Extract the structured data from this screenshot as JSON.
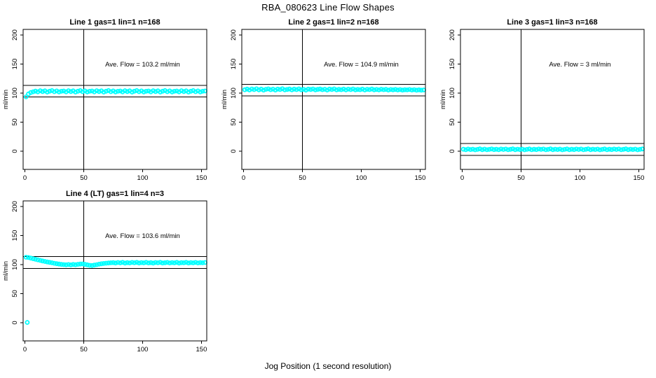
{
  "page": {
    "title": "RBA_080623  Line Flow Shapes",
    "xlabel": "Jog Position (1 second resolution)"
  },
  "colors": {
    "points": "#00ffff",
    "axis": "#000000",
    "background": "#ffffff"
  },
  "chart_data": [
    {
      "type": "scatter",
      "title": "Line 1 gas=1 lin=1 n=168",
      "annotation": "Ave. Flow =  103.2  ml/min",
      "annotation_xy": [
        100,
        146
      ],
      "ave_flow": 103.2,
      "n": 168,
      "ylabel": "ml/min",
      "vline_x": 50,
      "hlines": [
        113.2,
        93.2
      ],
      "xticks": [
        0,
        50,
        100,
        150
      ],
      "yticks": [
        0,
        50,
        100,
        150,
        200
      ],
      "xlim": [
        -1.5,
        154.5
      ],
      "ylim": [
        -31.3,
        209.6
      ],
      "grid": false,
      "points": [
        [
          1,
          93.5
        ],
        [
          3,
          98.5
        ],
        [
          5,
          101
        ],
        [
          7,
          102.3
        ],
        [
          9,
          103.4
        ],
        [
          11,
          102.2
        ],
        [
          13,
          104.1
        ],
        [
          15,
          102.7
        ],
        [
          17,
          103.9
        ],
        [
          19,
          101.8
        ],
        [
          21,
          103.2
        ],
        [
          23,
          104.3
        ],
        [
          25,
          102.4
        ],
        [
          27,
          103.7
        ],
        [
          29,
          102
        ],
        [
          31,
          103.1
        ],
        [
          33,
          103.6
        ],
        [
          35,
          102.2
        ],
        [
          37,
          104.1
        ],
        [
          39,
          102.7
        ],
        [
          41,
          103.9
        ],
        [
          43,
          101.8
        ],
        [
          45,
          103.2
        ],
        [
          47,
          104.3
        ],
        [
          49,
          102.4
        ],
        [
          51,
          103.7
        ],
        [
          53,
          102
        ],
        [
          55,
          103.1
        ],
        [
          57,
          103.6
        ],
        [
          59,
          102.2
        ],
        [
          61,
          104.1
        ],
        [
          63,
          102.7
        ],
        [
          65,
          103.9
        ],
        [
          67,
          101.8
        ],
        [
          69,
          103.2
        ],
        [
          71,
          104.3
        ],
        [
          73,
          102.4
        ],
        [
          75,
          103.7
        ],
        [
          77,
          102
        ],
        [
          79,
          103.1
        ],
        [
          81,
          103.6
        ],
        [
          83,
          102.2
        ],
        [
          85,
          104.1
        ],
        [
          87,
          102.7
        ],
        [
          89,
          103.9
        ],
        [
          91,
          101.8
        ],
        [
          93,
          103.2
        ],
        [
          95,
          104.3
        ],
        [
          97,
          102.4
        ],
        [
          99,
          103.7
        ],
        [
          101,
          102
        ],
        [
          103,
          103.1
        ],
        [
          105,
          103.6
        ],
        [
          107,
          102.2
        ],
        [
          109,
          104.1
        ],
        [
          111,
          102.7
        ],
        [
          113,
          103.9
        ],
        [
          115,
          101.8
        ],
        [
          117,
          103.2
        ],
        [
          119,
          104.3
        ],
        [
          121,
          102.4
        ],
        [
          123,
          103.7
        ],
        [
          125,
          102
        ],
        [
          127,
          103.1
        ],
        [
          129,
          103.6
        ],
        [
          131,
          102.2
        ],
        [
          133,
          104.1
        ],
        [
          135,
          102.7
        ],
        [
          137,
          103.9
        ],
        [
          139,
          101.8
        ],
        [
          141,
          103.2
        ],
        [
          143,
          104.3
        ],
        [
          145,
          102.4
        ],
        [
          147,
          103.7
        ],
        [
          149,
          102
        ],
        [
          151,
          103.1
        ],
        [
          153,
          103.6
        ]
      ]
    },
    {
      "type": "scatter",
      "title": "Line 2 gas=1 lin=2 n=168",
      "annotation": "Ave. Flow =  104.9  ml/min",
      "annotation_xy": [
        100,
        146
      ],
      "ave_flow": 104.9,
      "n": 168,
      "ylabel": "ml/min",
      "vline_x": 50,
      "hlines": [
        114.9,
        94.9
      ],
      "xticks": [
        0,
        50,
        100,
        150
      ],
      "yticks": [
        0,
        50,
        100,
        150,
        200
      ],
      "xlim": [
        -1.5,
        154.5
      ],
      "ylim": [
        -31.3,
        209.6
      ],
      "grid": false,
      "points": [
        [
          1,
          105.8
        ],
        [
          3,
          106.9
        ],
        [
          5,
          105.4
        ],
        [
          7,
          107.1
        ],
        [
          9,
          106
        ],
        [
          11,
          107.3
        ],
        [
          13,
          105.6
        ],
        [
          15,
          106.8
        ],
        [
          17,
          105.2
        ],
        [
          19,
          106.5
        ],
        [
          21,
          107.2
        ],
        [
          23,
          105.9
        ],
        [
          25,
          106.7
        ],
        [
          27,
          105.3
        ],
        [
          29,
          106.9
        ],
        [
          31,
          106.1
        ],
        [
          33,
          107.4
        ],
        [
          35,
          105.7
        ],
        [
          37,
          106.3
        ],
        [
          39,
          107
        ],
        [
          41,
          105.5
        ],
        [
          43,
          106.8
        ],
        [
          45,
          106
        ],
        [
          47,
          107.2
        ],
        [
          49,
          105.8
        ],
        [
          51,
          106.5
        ],
        [
          53,
          105.2
        ],
        [
          55,
          106.9
        ],
        [
          57,
          106.2
        ],
        [
          59,
          107.1
        ],
        [
          61,
          105.6
        ],
        [
          63,
          106.4
        ],
        [
          65,
          107
        ],
        [
          67,
          105.9
        ],
        [
          69,
          106.6
        ],
        [
          71,
          105.3
        ],
        [
          73,
          106.8
        ],
        [
          75,
          106.1
        ],
        [
          77,
          107.2
        ],
        [
          79,
          105.7
        ],
        [
          81,
          106.4
        ],
        [
          83,
          105.9
        ],
        [
          85,
          106.9
        ],
        [
          87,
          105.5
        ],
        [
          89,
          106.7
        ],
        [
          91,
          106
        ],
        [
          93,
          107.1
        ],
        [
          95,
          105.6
        ],
        [
          97,
          106.3
        ],
        [
          99,
          105.9
        ],
        [
          101,
          106.8
        ],
        [
          103,
          105.4
        ],
        [
          105,
          106.5
        ],
        [
          107,
          106
        ],
        [
          109,
          107
        ],
        [
          111,
          105.7
        ],
        [
          113,
          106.2
        ],
        [
          115,
          105.5
        ],
        [
          117,
          106.6
        ],
        [
          119,
          105.9
        ],
        [
          121,
          106.4
        ],
        [
          123,
          105.3
        ],
        [
          125,
          106.1
        ],
        [
          127,
          105.6
        ],
        [
          129,
          106.3
        ],
        [
          131,
          105.4
        ],
        [
          133,
          106
        ],
        [
          135,
          105.2
        ],
        [
          137,
          105.8
        ],
        [
          139,
          105.5
        ],
        [
          141,
          106.1
        ],
        [
          143,
          105.3
        ],
        [
          145,
          105.9
        ],
        [
          147,
          105.1
        ],
        [
          149,
          105.6
        ],
        [
          151,
          105
        ],
        [
          153,
          105.4
        ]
      ]
    },
    {
      "type": "scatter",
      "title": "Line 3 gas=1 lin=3 n=168",
      "annotation": "Ave. Flow =  3  ml/min",
      "annotation_xy": [
        100,
        146
      ],
      "ave_flow": 3,
      "n": 168,
      "ylabel": "ml/min",
      "vline_x": 50,
      "hlines": [
        13,
        -7
      ],
      "xticks": [
        0,
        50,
        100,
        150
      ],
      "yticks": [
        0,
        50,
        100,
        150,
        200
      ],
      "xlim": [
        -1.5,
        154.5
      ],
      "ylim": [
        -31.3,
        209.6
      ],
      "grid": false,
      "points": [
        [
          1,
          3.4
        ],
        [
          3,
          2.6
        ],
        [
          5,
          3.8
        ],
        [
          7,
          2.9
        ],
        [
          9,
          3.5
        ],
        [
          11,
          2.4
        ],
        [
          13,
          3.1
        ],
        [
          15,
          4
        ],
        [
          17,
          2.7
        ],
        [
          19,
          3.6
        ],
        [
          21,
          2.5
        ],
        [
          23,
          3.2
        ],
        [
          25,
          3.9
        ],
        [
          27,
          2.8
        ],
        [
          29,
          3.4
        ],
        [
          31,
          2.6
        ],
        [
          33,
          3.7
        ],
        [
          35,
          3
        ],
        [
          37,
          3.8
        ],
        [
          39,
          2.5
        ],
        [
          41,
          3.3
        ],
        [
          43,
          4
        ],
        [
          45,
          2.7
        ],
        [
          47,
          3.5
        ],
        [
          49,
          2.9
        ],
        [
          51,
          3.6
        ],
        [
          53,
          2.4
        ],
        [
          55,
          3.1
        ],
        [
          57,
          3.9
        ],
        [
          59,
          2.6
        ],
        [
          61,
          3.4
        ],
        [
          63,
          2.8
        ],
        [
          65,
          3.7
        ],
        [
          67,
          3.1
        ],
        [
          69,
          3.8
        ],
        [
          71,
          2.5
        ],
        [
          73,
          3.2
        ],
        [
          75,
          4
        ],
        [
          77,
          2.7
        ],
        [
          79,
          3.5
        ],
        [
          81,
          2.9
        ],
        [
          83,
          3.6
        ],
        [
          85,
          2.4
        ],
        [
          87,
          3.1
        ],
        [
          89,
          3.9
        ],
        [
          91,
          2.6
        ],
        [
          93,
          3.4
        ],
        [
          95,
          2.8
        ],
        [
          97,
          3.7
        ],
        [
          99,
          3
        ],
        [
          101,
          3.8
        ],
        [
          103,
          2.5
        ],
        [
          105,
          3.3
        ],
        [
          107,
          4
        ],
        [
          109,
          2.7
        ],
        [
          111,
          3.5
        ],
        [
          113,
          2.9
        ],
        [
          115,
          3.6
        ],
        [
          117,
          2.4
        ],
        [
          119,
          3.1
        ],
        [
          121,
          3.9
        ],
        [
          123,
          2.6
        ],
        [
          125,
          3.4
        ],
        [
          127,
          2.8
        ],
        [
          129,
          3.7
        ],
        [
          131,
          3
        ],
        [
          133,
          3.8
        ],
        [
          135,
          2.5
        ],
        [
          137,
          3.3
        ],
        [
          139,
          4
        ],
        [
          141,
          2.7
        ],
        [
          143,
          3.5
        ],
        [
          145,
          2.9
        ],
        [
          147,
          3.6
        ],
        [
          149,
          2.4
        ],
        [
          151,
          3.1
        ],
        [
          153,
          3.9
        ]
      ]
    },
    {
      "type": "scatter",
      "title": "Line 4 (LT) gas=1 lin=4 n=3",
      "annotation": "Ave. Flow =  103.6  ml/min",
      "annotation_xy": [
        100,
        146
      ],
      "ave_flow": 103.6,
      "n": 3,
      "ylabel": "ml/min",
      "vline_x": 50,
      "hlines": [
        113.6,
        93.6
      ],
      "xticks": [
        0,
        50,
        100,
        150
      ],
      "yticks": [
        0,
        50,
        100,
        150,
        200
      ],
      "xlim": [
        -1.5,
        154.5
      ],
      "ylim": [
        -31.3,
        209.6
      ],
      "grid": false,
      "points": [
        [
          2,
          0.5
        ],
        [
          1,
          112.6
        ],
        [
          3,
          112.1
        ],
        [
          5,
          111.2
        ],
        [
          7,
          110.1
        ],
        [
          9,
          109.2
        ],
        [
          11,
          108.2
        ],
        [
          13,
          107.2
        ],
        [
          15,
          106.2
        ],
        [
          17,
          105.4
        ],
        [
          19,
          104.6
        ],
        [
          21,
          103.9
        ],
        [
          23,
          103.1
        ],
        [
          25,
          102.3
        ],
        [
          27,
          101.6
        ],
        [
          29,
          100.9
        ],
        [
          31,
          100.4
        ],
        [
          33,
          100
        ],
        [
          35,
          99.6
        ],
        [
          37,
          100.1
        ],
        [
          39,
          99.5
        ],
        [
          41,
          100.2
        ],
        [
          43,
          99.8
        ],
        [
          45,
          100.5
        ],
        [
          47,
          100.9
        ],
        [
          49,
          101.2
        ],
        [
          51,
          100.4
        ],
        [
          53,
          99.6
        ],
        [
          55,
          98.8
        ],
        [
          57,
          98.4
        ],
        [
          59,
          99.1
        ],
        [
          61,
          99.9
        ],
        [
          63,
          100.7
        ],
        [
          65,
          101.4
        ],
        [
          67,
          101.9
        ],
        [
          69,
          102.4
        ],
        [
          71,
          102.8
        ],
        [
          73,
          103.1
        ],
        [
          75,
          103.4
        ],
        [
          77,
          102.8
        ],
        [
          79,
          103.6
        ],
        [
          81,
          103
        ],
        [
          83,
          103.8
        ],
        [
          85,
          102.7
        ],
        [
          87,
          103.4
        ],
        [
          89,
          102.9
        ],
        [
          91,
          103.7
        ],
        [
          93,
          103.1
        ],
        [
          95,
          103.9
        ],
        [
          97,
          102.8
        ],
        [
          99,
          103.5
        ],
        [
          101,
          103
        ],
        [
          103,
          103.8
        ],
        [
          105,
          102.9
        ],
        [
          107,
          103.4
        ],
        [
          109,
          102.7
        ],
        [
          111,
          103.6
        ],
        [
          113,
          103.1
        ],
        [
          115,
          103.9
        ],
        [
          117,
          102.8
        ],
        [
          119,
          103.3
        ],
        [
          121,
          103.7
        ],
        [
          123,
          102.9
        ],
        [
          125,
          103.5
        ],
        [
          127,
          103
        ],
        [
          129,
          103.8
        ],
        [
          131,
          102.7
        ],
        [
          133,
          103.4
        ],
        [
          135,
          103.1
        ],
        [
          137,
          103.9
        ],
        [
          139,
          102.8
        ],
        [
          141,
          103.5
        ],
        [
          143,
          103
        ],
        [
          145,
          103.7
        ],
        [
          147,
          102.9
        ],
        [
          149,
          103.4
        ],
        [
          151,
          103.1
        ],
        [
          153,
          103.6
        ]
      ]
    }
  ]
}
